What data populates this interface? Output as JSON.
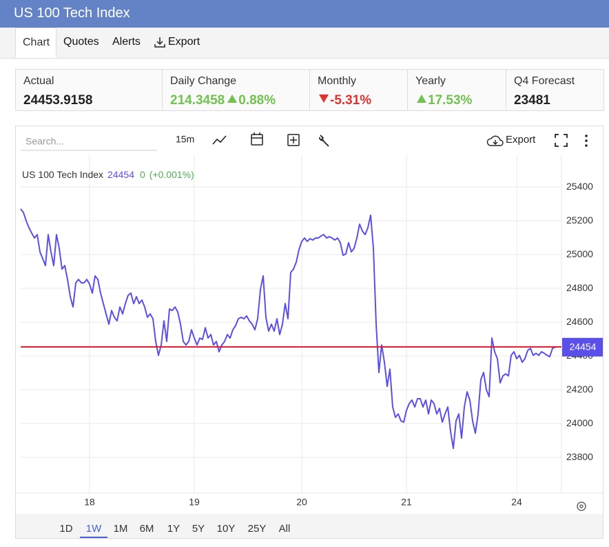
{
  "header": {
    "title": "US 100 Tech Index"
  },
  "tabs": [
    "Chart",
    "Quotes",
    "Alerts",
    "Export"
  ],
  "stats": [
    {
      "label": "Actual",
      "value": 24453.9158
    },
    {
      "label": "Daily Change",
      "value": 214.3458,
      "percent": "0.88%"
    },
    {
      "label": "Monthly",
      "percent": "-5.31%"
    },
    {
      "label": "Yearly",
      "percent": "17.53%"
    },
    {
      "label": "Q4 Forecast",
      "value": 23481
    }
  ],
  "toolbar": {
    "search_placeholder": "Search...",
    "interval": "15m",
    "export": "Export"
  },
  "chart_data": {
    "type": "line",
    "categories": [
      null,
      null,
      null,
      null,
      null,
      null,
      null,
      null,
      null,
      null,
      null,
      null,
      null,
      null,
      null,
      null,
      null,
      null,
      null,
      null,
      null,
      null,
      null,
      null,
      null,
      "18",
      null,
      null,
      null,
      null,
      null,
      null,
      null,
      null,
      null,
      null,
      null,
      null,
      null,
      null,
      null,
      null,
      null,
      null,
      null,
      null,
      null,
      null,
      null,
      null,
      null,
      null,
      null,
      null,
      null,
      null,
      null,
      null,
      null,
      null,
      null,
      null,
      null,
      "19",
      null,
      null,
      null,
      null,
      null,
      null,
      null,
      null,
      null,
      null,
      null,
      null,
      null,
      null,
      null,
      null,
      null,
      null,
      null,
      null,
      null,
      null,
      null,
      null,
      null,
      null,
      null,
      null,
      null,
      null,
      null,
      null,
      null,
      null,
      null,
      null,
      null,
      null,
      "20",
      null,
      null,
      null,
      null,
      null,
      null,
      null,
      null,
      null,
      null,
      null,
      null,
      null,
      null,
      null,
      null,
      null,
      null,
      null,
      null,
      null,
      null,
      null,
      null,
      null,
      null,
      null,
      null,
      null,
      null,
      null,
      null,
      null,
      null,
      null,
      null,
      null,
      "21",
      null,
      null,
      null,
      null,
      null,
      null,
      null,
      null,
      null,
      null,
      null,
      null,
      null,
      null,
      null,
      null,
      null,
      null,
      null,
      null,
      null,
      null,
      null,
      null,
      null,
      null,
      null,
      null,
      null,
      null,
      null,
      null,
      null,
      null,
      null,
      null,
      null,
      null,
      null,
      "24",
      null,
      null,
      null,
      null,
      null,
      null,
      null,
      null,
      null,
      null,
      null,
      null,
      null,
      null,
      null
    ],
    "series": [
      {
        "name": "US 100 Tech Index",
        "color": "#5a4fe8",
        "values": [
          25270,
          25249,
          25200,
          25159,
          25127,
          25098,
          25118,
          25016,
          24976,
          24935,
          25118,
          25016,
          24935,
          25118,
          25037,
          24914,
          24935,
          24853,
          24751,
          24690,
          24833,
          24853,
          24833,
          24833,
          24853,
          24825,
          24772,
          24874,
          24853,
          24772,
          24710,
          24649,
          24588,
          24669,
          24629,
          24608,
          24690,
          24649,
          24710,
          24759,
          24772,
          24710,
          24751,
          24710,
          24731,
          24690,
          24629,
          24649,
          24620,
          24486,
          24404,
          24465,
          24608,
          24486,
          24678,
          24669,
          24690,
          24661,
          24588,
          24486,
          24465,
          24486,
          24555,
          24506,
          24465,
          24506,
          24498,
          24567,
          24506,
          24527,
          24465,
          24486,
          24425,
          24465,
          24486,
          24527,
          24506,
          24555,
          24580,
          24620,
          24629,
          24620,
          24637,
          24608,
          24588,
          24555,
          24620,
          24792,
          24874,
          24629,
          24547,
          24588,
          24547,
          24620,
          24527,
          24588,
          24710,
          24620,
          24894,
          24914,
          24955,
          25029,
          25078,
          25098,
          25078,
          25094,
          25086,
          25098,
          25098,
          25110,
          25118,
          25098,
          25106,
          25098,
          25086,
          25098,
          25070,
          24996,
          25004,
          25070,
          25016,
          25037,
          25098,
          25180,
          25139,
          25118,
          25159,
          25233,
          25037,
          24588,
          24302,
          24465,
          24363,
          24220,
          24322,
          24098,
          24037,
          24057,
          24016,
          24008,
          24078,
          24118,
          24139,
          24098,
          24147,
          24147,
          24098,
          24139,
          24057,
          24139,
          24118,
          24057,
          24090,
          24008,
          24057,
          24098,
          23955,
          23853,
          24016,
          24057,
          23914,
          24098,
          24188,
          24139,
          24016,
          23943,
          24057,
          24261,
          24302,
          24200,
          24159,
          24506,
          24425,
          24384,
          24241,
          24282,
          24294,
          24282,
          24404,
          24425,
          24384,
          24404,
          24363,
          24384,
          24433,
          24445,
          24404,
          24416,
          24404,
          24425,
          24416,
          24404,
          24396,
          24445,
          24453,
          24454
        ]
      }
    ],
    "last_value": 24454,
    "last_line_color": "#e0182d",
    "change": 0,
    "change_label": "(+0.001%)",
    "ylim": [
      23588,
      25588
    ],
    "yticks": [
      23800,
      24000,
      24200,
      24400,
      24600,
      24800,
      25000,
      25200,
      25400
    ],
    "grid": true
  },
  "ranges": [
    "1D",
    "1W",
    "1M",
    "6M",
    "1Y",
    "5Y",
    "10Y",
    "25Y",
    "All"
  ],
  "active_range": "1W"
}
